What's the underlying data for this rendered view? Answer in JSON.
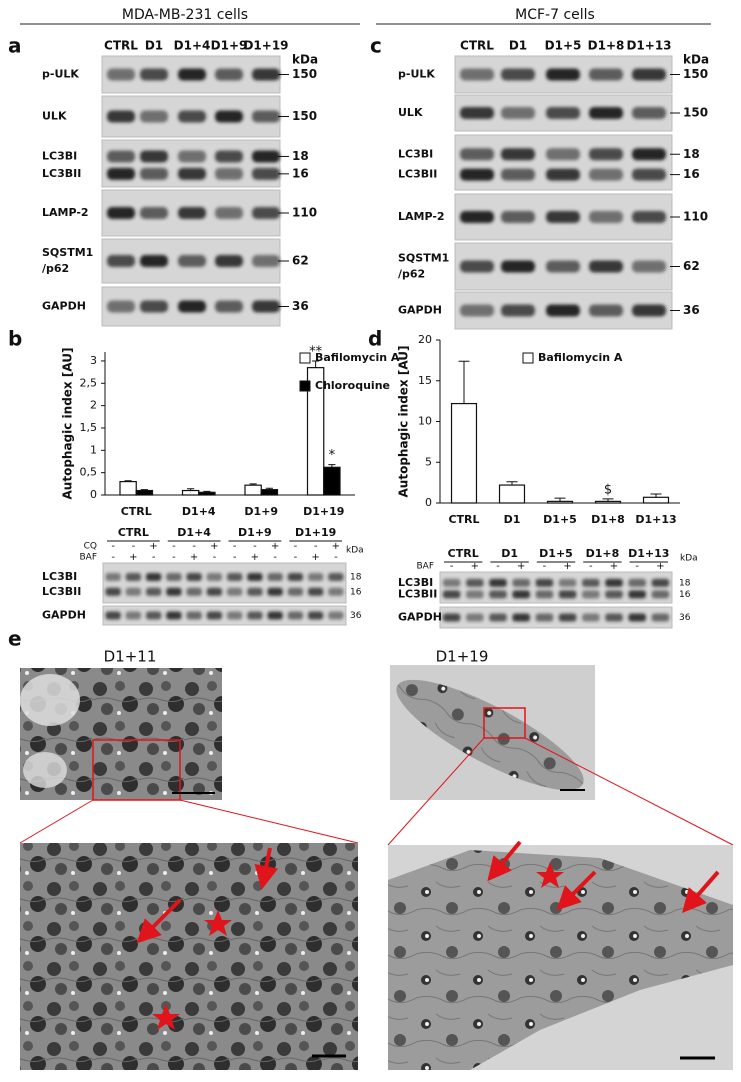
{
  "headers": [
    "MDA-MB-231 cells",
    "MCF-7 cells"
  ],
  "panel_a": {
    "letter": "a",
    "lanes": [
      "CTRL",
      "D1",
      "D1+4",
      "D1+9",
      "D1+19"
    ],
    "unit": "kDa",
    "rows": [
      {
        "labels": [
          "p-ULK"
        ],
        "kda": [
          "150"
        ]
      },
      {
        "labels": [
          "ULK"
        ],
        "kda": [
          "150"
        ]
      },
      {
        "labels": [
          "LC3BI",
          "LC3BII"
        ],
        "kda": [
          "18",
          "16"
        ]
      },
      {
        "labels": [
          "LAMP-2"
        ],
        "kda": [
          "110"
        ]
      },
      {
        "labels": [
          "SQSTM1",
          "/p62"
        ],
        "kda": [
          "62"
        ]
      },
      {
        "labels": [
          "GAPDH"
        ],
        "kda": [
          "36"
        ]
      }
    ]
  },
  "panel_c": {
    "letter": "c",
    "lanes": [
      "CTRL",
      "D1",
      "D1+5",
      "D1+8",
      "D1+13"
    ],
    "unit": "kDa",
    "rows": [
      {
        "labels": [
          "p-ULK"
        ],
        "kda": [
          "150"
        ]
      },
      {
        "labels": [
          "ULK"
        ],
        "kda": [
          "150"
        ]
      },
      {
        "labels": [
          "LC3BI",
          "LC3BII"
        ],
        "kda": [
          "18",
          "16"
        ]
      },
      {
        "labels": [
          "LAMP-2"
        ],
        "kda": [
          "110"
        ]
      },
      {
        "labels": [
          "SQSTM1",
          "/p62"
        ],
        "kda": [
          "62"
        ]
      },
      {
        "labels": [
          "GAPDH"
        ],
        "kda": [
          "36"
        ]
      }
    ]
  },
  "chart_data": [
    {
      "type": "bar",
      "letter": "b",
      "y_label": "Autophagic index [AU]",
      "categories": [
        "CTRL",
        "D1+4",
        "D1+9",
        "D1+19"
      ],
      "series": [
        {
          "name": "Bafilomycin A",
          "color": "#ffffff",
          "values": [
            0.3,
            0.1,
            0.22,
            2.85
          ],
          "errors": [
            0.02,
            0.04,
            0.03,
            0.15
          ]
        },
        {
          "name": "Chloroquine",
          "color": "#000000",
          "values": [
            0.1,
            0.06,
            0.12,
            0.62
          ],
          "errors": [
            0.02,
            0.02,
            0.03,
            0.06
          ]
        }
      ],
      "annotations": [
        "**",
        "*"
      ],
      "ylim": [
        0,
        3.2
      ],
      "yticks": [
        0,
        {
          "value": 0.5,
          "label": "0,5"
        },
        1,
        {
          "value": 1.5,
          "label": "1,5"
        },
        2,
        {
          "value": 2.5,
          "label": "2,5"
        },
        3
      ]
    },
    {
      "type": "bar",
      "letter": "d",
      "y_label": "Autophagic index [AU]",
      "categories": [
        "CTRL",
        "D1",
        "D1+5",
        "D1+8",
        "D1+13"
      ],
      "series": [
        {
          "name": "Bafilomycin A",
          "color": "#ffffff",
          "values": [
            12.2,
            2.2,
            0.2,
            0.2,
            0.7
          ],
          "errors": [
            5.2,
            0.4,
            0.4,
            0.3,
            0.4
          ]
        }
      ],
      "annotations": [
        "$"
      ],
      "ylim": [
        0,
        20
      ],
      "yticks": [
        0,
        5,
        10,
        15,
        20
      ]
    }
  ],
  "panel_b_blot": {
    "groups": [
      "CTRL",
      "D1+4",
      "D1+9",
      "D1+19"
    ],
    "treatments": [
      {
        "name": "CQ",
        "signs": [
          "-",
          "-",
          "+"
        ]
      },
      {
        "name": "BAF",
        "signs": [
          "-",
          "+",
          "-"
        ]
      }
    ],
    "unit": "kDa",
    "rows": [
      {
        "labels": [
          "LC3BI",
          "LC3BII"
        ],
        "kda": [
          "18",
          "16"
        ]
      },
      {
        "labels": [
          "GAPDH"
        ],
        "kda": [
          "36"
        ]
      }
    ]
  },
  "panel_d_blot": {
    "groups": [
      "CTRL",
      "D1",
      "D1+5",
      "D1+8",
      "D1+13"
    ],
    "treatments": [
      {
        "name": "BAF",
        "signs": [
          "-",
          "+"
        ]
      }
    ],
    "unit": "kDa",
    "rows": [
      {
        "labels": [
          "LC3BI",
          "LC3BII"
        ],
        "kda": [
          "18",
          "16"
        ]
      },
      {
        "labels": [
          "GAPDH"
        ],
        "kda": [
          "36"
        ]
      }
    ]
  },
  "panel_e": {
    "letter": "e",
    "images": [
      {
        "label": "D1+11"
      },
      {
        "label": "D1+19"
      }
    ]
  }
}
